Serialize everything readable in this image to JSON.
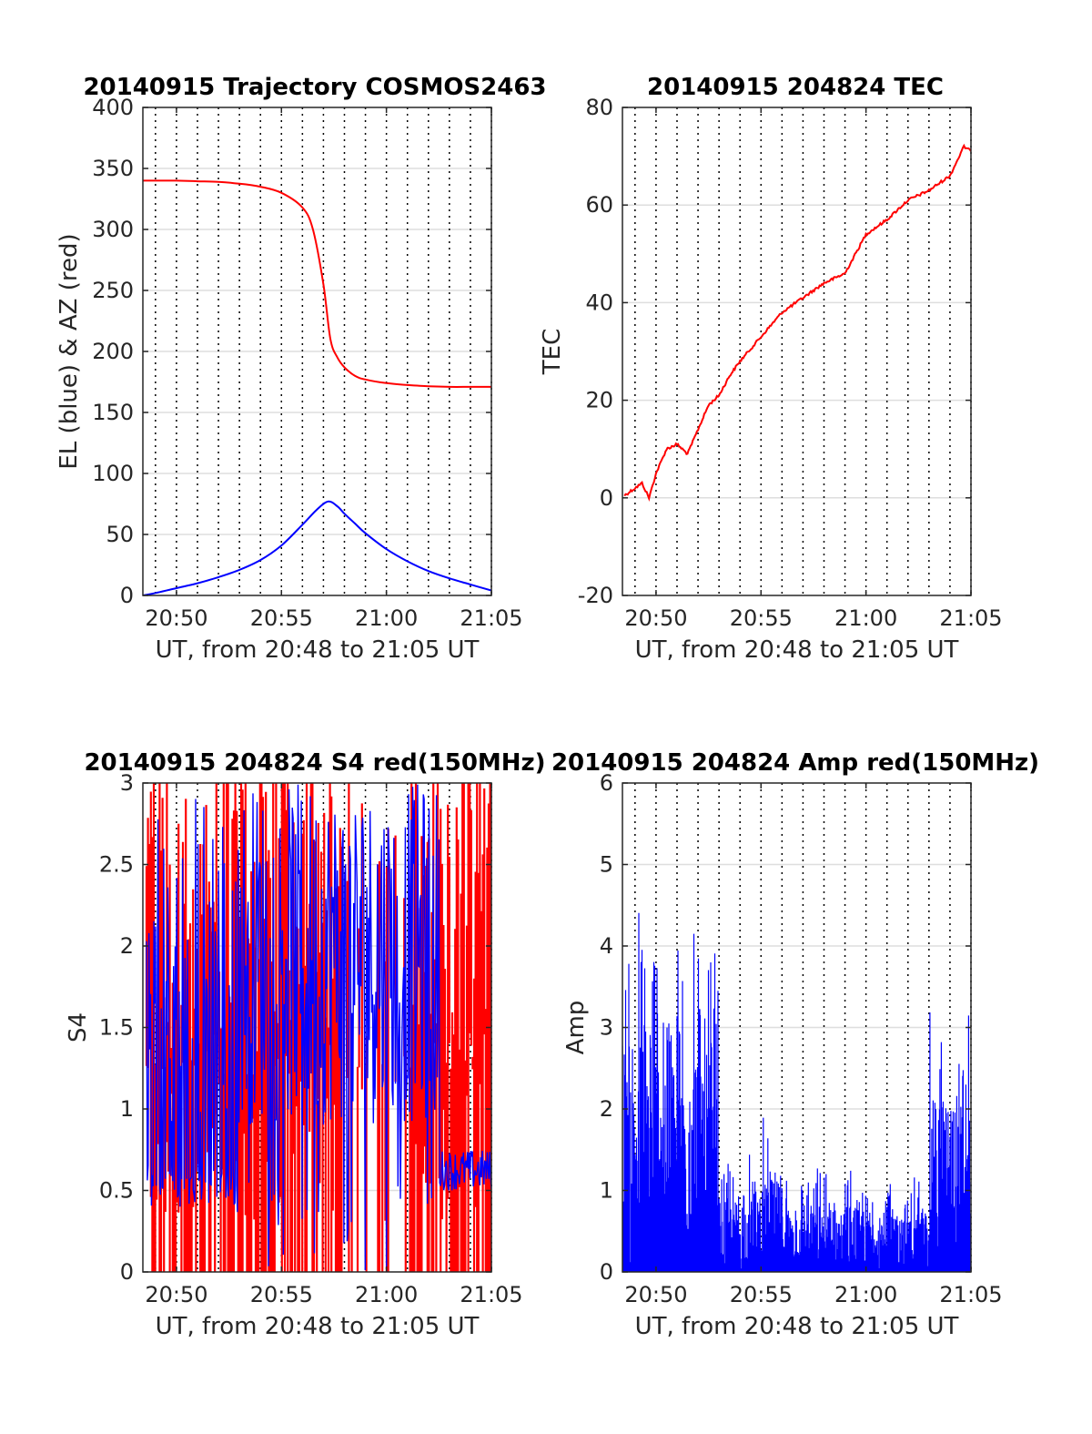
{
  "figure": {
    "background": "#ffffff"
  },
  "colors": {
    "red": "#ff0000",
    "blue": "#0000ff",
    "axis": "#262626",
    "grid": "#dedede",
    "vgrid": "#000000"
  },
  "chart_data": [
    {
      "type": "line",
      "title": "20140915 Trajectory COSMOS2463",
      "xlabel": "UT, from 20:48 to 21:05 UT",
      "ylabel": "EL (blue) & AZ (red)",
      "xlim": [
        "20:48:24",
        "21:05:00"
      ],
      "ylim": [
        0,
        400
      ],
      "xticks": [
        "20:50",
        "20:55",
        "21:00",
        "21:05"
      ],
      "yticks": [
        0,
        50,
        100,
        150,
        200,
        250,
        300,
        350,
        400
      ],
      "grid": "horizontal solid, vertical dotted every minute",
      "series": [
        {
          "color": "red",
          "x": [
            "20:48:24",
            "20:50:00",
            "20:51:00",
            "20:52:00",
            "20:53:00",
            "20:54:00",
            "20:55:00",
            "20:56:00",
            "20:56:30",
            "20:57:00",
            "20:57:20",
            "20:57:40",
            "20:58:00",
            "20:58:30",
            "20:59:00",
            "21:00:00",
            "21:01:00",
            "21:02:00",
            "21:03:00",
            "21:04:00",
            "21:05:00"
          ],
          "y": [
            340,
            340,
            339.5,
            339,
            337.5,
            335,
            330,
            318,
            300,
            255,
            210,
            195,
            187,
            180,
            177,
            174,
            172.5,
            171.5,
            171,
            171,
            171
          ]
        },
        {
          "color": "blue",
          "x": [
            "20:48:24",
            "20:49:00",
            "20:50:00",
            "20:51:00",
            "20:52:00",
            "20:53:00",
            "20:54:00",
            "20:55:00",
            "20:56:00",
            "20:56:40",
            "20:57:13",
            "20:57:40",
            "20:58:00",
            "20:58:30",
            "20:59:00",
            "21:00:00",
            "21:01:00",
            "21:02:00",
            "21:03:00",
            "21:04:00",
            "21:05:00"
          ],
          "y": [
            0,
            2,
            6,
            10,
            15,
            21,
            29,
            41,
            58,
            70,
            77,
            73,
            67,
            59,
            51,
            38,
            28,
            20,
            14,
            9,
            4
          ]
        }
      ]
    },
    {
      "type": "line",
      "title": "20140915 204824 TEC",
      "xlabel": "UT, from 20:48 to 21:05 UT",
      "ylabel": "TEC",
      "xlim": [
        "20:48:24",
        "21:05:00"
      ],
      "ylim": [
        -20,
        80
      ],
      "xticks": [
        "20:50",
        "20:55",
        "21:00",
        "21:05"
      ],
      "yticks": [
        -20,
        0,
        20,
        40,
        60,
        80
      ],
      "grid": "horizontal solid, vertical dotted every minute",
      "series": [
        {
          "color": "red",
          "x": [
            "20:48:30",
            "20:49:00",
            "20:49:20",
            "20:49:40",
            "20:50:00",
            "20:50:30",
            "20:51:00",
            "20:51:30",
            "20:52:00",
            "20:52:30",
            "20:53:00",
            "20:53:30",
            "20:54:00",
            "20:55:00",
            "20:56:00",
            "20:57:00",
            "20:58:00",
            "20:59:00",
            "21:00:00",
            "21:01:00",
            "21:02:00",
            "21:03:00",
            "21:04:00",
            "21:04:40",
            "21:05:00"
          ],
          "y": [
            0.5,
            2,
            3,
            0,
            5,
            10,
            11,
            9,
            14,
            19,
            21,
            25,
            28,
            33,
            38,
            41,
            44,
            46,
            54,
            57,
            61,
            63,
            66,
            72,
            71
          ]
        }
      ]
    },
    {
      "type": "line",
      "title": "20140915 204824 S4 red(150MHz)",
      "xlabel": "UT, from 20:48 to 21:05 UT",
      "ylabel": "S4",
      "xlim": [
        "20:48:24",
        "21:05:00"
      ],
      "ylim": [
        0,
        3
      ],
      "xticks": [
        "20:50",
        "20:55",
        "21:00",
        "21:05"
      ],
      "yticks": [
        0,
        0.5,
        1,
        1.5,
        2,
        2.5,
        3
      ],
      "grid": "horizontal solid, vertical dotted every minute",
      "series": [
        {
          "color": "red",
          "note_values": "dense noisy signal spanning 0 to 3"
        },
        {
          "color": "blue",
          "note_values": "dense noisy signal, mostly 0.4 to 3; about 0.5 to 0.7 after 21:02:30"
        }
      ]
    },
    {
      "type": "line",
      "title": "20140915 204824 Amp red(150MHz)",
      "xlabel": "UT, from 20:48 to 21:05 UT",
      "ylabel": "Amp",
      "xlim": [
        "20:48:24",
        "21:05:00"
      ],
      "ylim": [
        0,
        6
      ],
      "xticks": [
        "20:50",
        "20:55",
        "21:00",
        "21:05"
      ],
      "yticks": [
        0,
        1,
        2,
        3,
        4,
        5,
        6
      ],
      "grid": "horizontal solid, vertical dotted every minute",
      "series": [
        {
          "color": "blue",
          "segments": [
            {
              "from": "20:48:24",
              "to": "20:53:00",
              "range": [
                0,
                5.1
              ]
            },
            {
              "from": "20:53:00",
              "to": "20:55:00",
              "range": [
                0,
                1.6
              ]
            },
            {
              "from": "20:55:00",
              "to": "20:56:00",
              "range": [
                0,
                2.0
              ]
            },
            {
              "from": "20:56:00",
              "to": "21:03:00",
              "range": [
                0,
                1.4
              ]
            },
            {
              "from": "21:03:00",
              "to": "21:05:00",
              "range": [
                0,
                3.8
              ]
            }
          ]
        }
      ]
    }
  ]
}
